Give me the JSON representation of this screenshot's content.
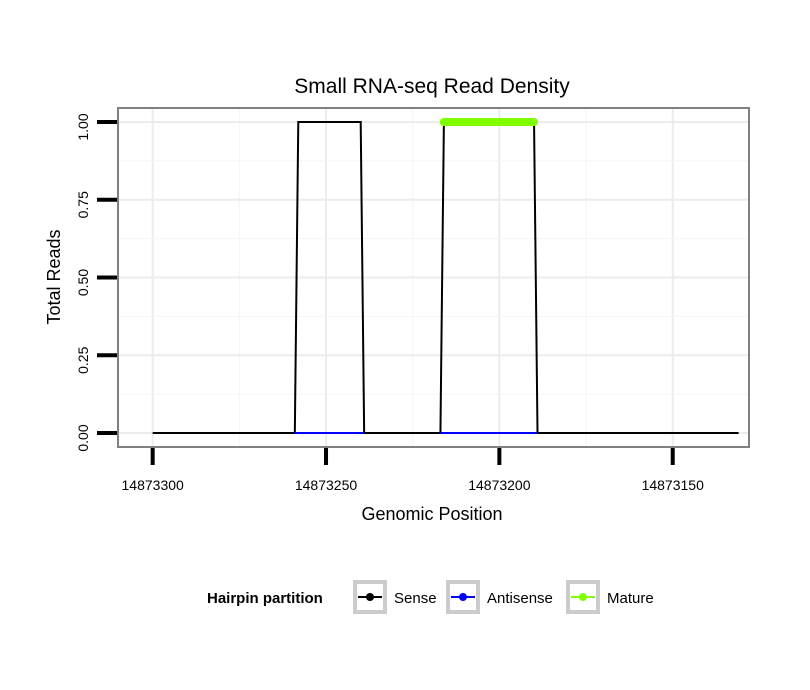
{
  "chart_data": {
    "type": "line",
    "title": "Small RNA-seq Read Density",
    "xlabel": "Genomic Position",
    "ylabel": "Total Reads",
    "x_reversed": true,
    "xlim": [
      14873310,
      14873128
    ],
    "ylim": [
      -0.045,
      1.045
    ],
    "x_ticks": [
      14873300,
      14873250,
      14873200,
      14873150
    ],
    "x_tick_labels": [
      "14873300",
      "14873250",
      "14873200",
      "14873150"
    ],
    "y_ticks": [
      0,
      0.25,
      0.5,
      0.75,
      1
    ],
    "y_tick_labels": [
      "0.00",
      "0.25",
      "0.50",
      "0.75",
      "1.00"
    ],
    "grid": true,
    "legend": {
      "title": "Hairpin partition",
      "placement": "bottom",
      "entries": [
        "Sense",
        "Antisense",
        "Mature"
      ]
    },
    "series": [
      {
        "name": "Sense",
        "color": "#000000",
        "x": [
          14873300,
          14873259,
          14873258,
          14873240,
          14873239,
          14873217,
          14873216,
          14873190,
          14873189,
          14873131
        ],
        "y": [
          0,
          0,
          1,
          1,
          0,
          0,
          1,
          1,
          0,
          0
        ]
      },
      {
        "name": "Antisense",
        "color": "#0000ff",
        "x": [
          14873259,
          14873239
        ],
        "y": [
          0,
          0
        ],
        "x2": [
          14873217,
          14873189
        ],
        "y2": [
          0,
          0
        ]
      },
      {
        "name": "Mature",
        "color": "#7fff00",
        "x": [
          14873216,
          14873190
        ],
        "y": [
          1,
          1
        ]
      }
    ]
  }
}
